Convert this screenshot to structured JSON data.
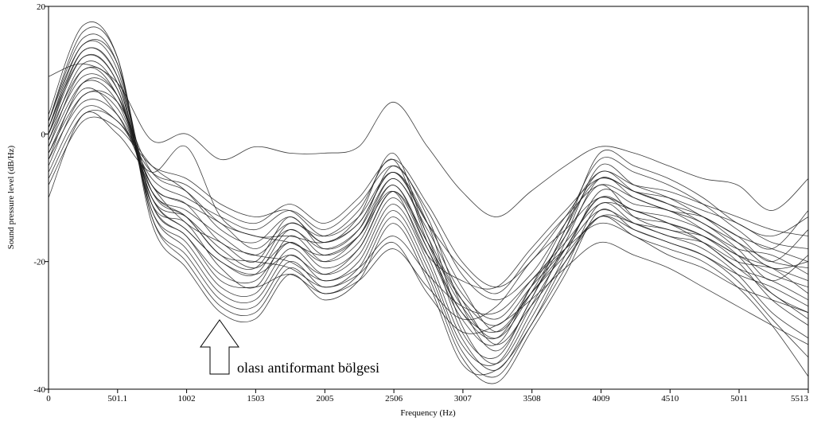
{
  "chart_data": {
    "type": "line",
    "title": "",
    "xlabel": "Frequency (Hz)",
    "ylabel": "Sound pressure level (dB/Hz)",
    "xlim": [
      0,
      5513
    ],
    "ylim": [
      -40,
      20
    ],
    "x_ticks": [
      {
        "value": 0,
        "label": "0"
      },
      {
        "value": 501.1,
        "label": "501.1"
      },
      {
        "value": 1002,
        "label": "1002"
      },
      {
        "value": 1503,
        "label": "1503"
      },
      {
        "value": 2005,
        "label": "2005"
      },
      {
        "value": 2506,
        "label": "2506"
      },
      {
        "value": 3007,
        "label": "3007"
      },
      {
        "value": 3508,
        "label": "3508"
      },
      {
        "value": 4009,
        "label": "4009"
      },
      {
        "value": 4510,
        "label": "4510"
      },
      {
        "value": 5011,
        "label": "5011"
      },
      {
        "value": 5513,
        "label": "5513"
      }
    ],
    "y_ticks": [
      {
        "value": 20,
        "label": "20"
      },
      {
        "value": 0,
        "label": "0"
      },
      {
        "value": -20,
        "label": "-20"
      },
      {
        "value": -40,
        "label": "-40"
      }
    ],
    "grid": false,
    "legend": "none",
    "line_color": "#1a1a1a",
    "x": [
      0,
      250,
      500,
      750,
      1000,
      1250,
      1500,
      1750,
      2000,
      2250,
      2500,
      2750,
      3000,
      3250,
      3500,
      3750,
      4000,
      4250,
      4500,
      4750,
      5000,
      5250,
      5513
    ],
    "series": [
      {
        "values": [
          9,
          11,
          8,
          -1,
          0,
          -4,
          -2,
          -3,
          -3,
          -2,
          5,
          -2,
          -9,
          -13,
          -9,
          -5,
          -2,
          -3,
          -5,
          -7,
          -8,
          -12,
          -7
        ]
      },
      {
        "values": [
          -10,
          3,
          0,
          -6,
          -2,
          -13,
          -16,
          -16,
          -17,
          -14,
          -6,
          -14,
          -24,
          -31,
          -25,
          -18,
          -10,
          -12,
          -13,
          -15,
          -18,
          -19,
          -22
        ]
      },
      {
        "values": [
          -6,
          4,
          2,
          -5,
          -9,
          -15,
          -17,
          -13,
          -17,
          -13,
          -3,
          -16,
          -26,
          -33,
          -27,
          -20,
          -13,
          -14,
          -16,
          -17,
          -20,
          -21,
          -23
        ]
      },
      {
        "values": [
          -5,
          6,
          4,
          -8,
          -11,
          -14,
          -18,
          -14,
          -16,
          -12,
          -4,
          -17,
          -28,
          -32,
          -24,
          -16,
          -8,
          -13,
          -15,
          -16,
          -19,
          -21,
          -25
        ]
      },
      {
        "values": [
          -3,
          7,
          3,
          -8,
          -14,
          -17,
          -20,
          -13,
          -18,
          -15,
          -5,
          -13,
          -27,
          -34,
          -26,
          -15,
          -6,
          -9,
          -11,
          -13,
          -17,
          -21,
          -20
        ]
      },
      {
        "values": [
          -2,
          8,
          5,
          -9,
          -13,
          -19,
          -21,
          -14,
          -17,
          -14,
          -6,
          -14,
          -30,
          -36,
          -28,
          -17,
          -7,
          -10,
          -12,
          -14,
          -18,
          -23,
          -19
        ]
      },
      {
        "values": [
          -2,
          10,
          6,
          -10,
          -15,
          -20,
          -22,
          -15,
          -19,
          -16,
          -7,
          -16,
          -31,
          -35,
          -26,
          -16,
          -5,
          -8,
          -10,
          -13,
          -16,
          -20,
          -15
        ]
      },
      {
        "values": [
          -1,
          11,
          7,
          -11,
          -14,
          -21,
          -24,
          -16,
          -20,
          -17,
          -8,
          -18,
          -29,
          -33,
          -24,
          -14,
          -4,
          -6,
          -8,
          -11,
          -15,
          -18,
          -12
        ]
      },
      {
        "values": [
          0,
          12,
          8,
          -11,
          -16,
          -22,
          -23,
          -17,
          -21,
          -18,
          -9,
          -17,
          -27,
          -32,
          -25,
          -15,
          -3,
          -5,
          -7,
          -10,
          -14,
          -16,
          -13
        ]
      },
      {
        "values": [
          1,
          13,
          9,
          -12,
          -17,
          -24,
          -25,
          -18,
          -22,
          -19,
          -10,
          -19,
          -32,
          -37,
          -29,
          -19,
          -9,
          -11,
          -12,
          -15,
          -19,
          -25,
          -28
        ]
      },
      {
        "values": [
          1,
          14,
          10,
          -12,
          -18,
          -25,
          -26,
          -19,
          -23,
          -20,
          -11,
          -20,
          -33,
          -36,
          -27,
          -18,
          -10,
          -13,
          -14,
          -16,
          -20,
          -26,
          -30
        ]
      },
      {
        "values": [
          2,
          15,
          11,
          -13,
          -19,
          -26,
          -27,
          -20,
          -24,
          -21,
          -12,
          -21,
          -34,
          -38,
          -30,
          -21,
          -11,
          -14,
          -16,
          -18,
          -22,
          -28,
          -32
        ]
      },
      {
        "values": [
          2,
          16,
          12,
          -13,
          -20,
          -27,
          -28,
          -21,
          -25,
          -22,
          -13,
          -22,
          -35,
          -39,
          -31,
          -22,
          -12,
          -15,
          -17,
          -19,
          -23,
          -29,
          -35
        ]
      },
      {
        "values": [
          3,
          17,
          12,
          -14,
          -21,
          -28,
          -29,
          -22,
          -26,
          -23,
          -14,
          -23,
          -36,
          -37,
          -30,
          -20,
          -13,
          -16,
          -18,
          -20,
          -24,
          -30,
          -38
        ]
      },
      {
        "values": [
          -4,
          5,
          3,
          -7,
          -10,
          -13,
          -15,
          -12,
          -15,
          -11,
          -5,
          -12,
          -22,
          -26,
          -22,
          -14,
          -7,
          -9,
          -10,
          -12,
          -14,
          -17,
          -18
        ]
      },
      {
        "values": [
          -7,
          3,
          2,
          -6,
          -8,
          -12,
          -14,
          -11,
          -14,
          -10,
          -4,
          -11,
          -20,
          -24,
          -20,
          -13,
          -6,
          -8,
          -9,
          -11,
          -13,
          -15,
          -16
        ]
      },
      {
        "values": [
          -1,
          9,
          6,
          -9,
          -12,
          -16,
          -19,
          -15,
          -18,
          -15,
          -7,
          -15,
          -25,
          -29,
          -23,
          -17,
          -11,
          -12,
          -14,
          -16,
          -19,
          -22,
          -24
        ]
      },
      {
        "values": [
          0,
          10,
          7,
          -10,
          -13,
          -18,
          -21,
          -17,
          -20,
          -16,
          -8,
          -17,
          -26,
          -30,
          -24,
          -18,
          -12,
          -14,
          -15,
          -17,
          -21,
          -23,
          -26
        ]
      },
      {
        "values": [
          1,
          12,
          8,
          -10,
          -15,
          -20,
          -22,
          -19,
          -22,
          -18,
          -9,
          -18,
          -28,
          -31,
          -25,
          -19,
          -13,
          -15,
          -17,
          -19,
          -22,
          -24,
          -27
        ]
      },
      {
        "values": [
          -8,
          2,
          1,
          -5,
          -7,
          -11,
          -13,
          -12,
          -16,
          -13,
          -6,
          -14,
          -21,
          -25,
          -19,
          -13,
          -8,
          -10,
          -12,
          -13,
          -16,
          -18,
          -20
        ]
      },
      {
        "values": [
          -3,
          6,
          5,
          -6,
          -9,
          -14,
          -16,
          -17,
          -19,
          -16,
          -9,
          -19,
          -23,
          -24,
          -18,
          -12,
          -7,
          -9,
          -11,
          -14,
          -17,
          -20,
          -21
        ]
      },
      {
        "values": [
          2,
          14,
          11,
          -11,
          -16,
          -23,
          -24,
          -22,
          -25,
          -23,
          -18,
          -24,
          -29,
          -27,
          -20,
          -15,
          -10,
          -12,
          -14,
          -17,
          -21,
          -25,
          -29
        ]
      },
      {
        "values": [
          -4,
          8,
          6,
          -8,
          -11,
          -17,
          -19,
          -20,
          -23,
          -21,
          -16,
          -22,
          -27,
          -28,
          -23,
          -18,
          -14,
          -16,
          -19,
          -21,
          -24,
          -26,
          -28
        ]
      },
      {
        "values": [
          0,
          13,
          9,
          -9,
          -13,
          -19,
          -20,
          -21,
          -24,
          -22,
          -17,
          -25,
          -31,
          -30,
          -26,
          -21,
          -17,
          -19,
          -21,
          -24,
          -27,
          -30,
          -33
        ]
      }
    ]
  },
  "annotation": {
    "text": "olası antiformant bölgesi"
  }
}
